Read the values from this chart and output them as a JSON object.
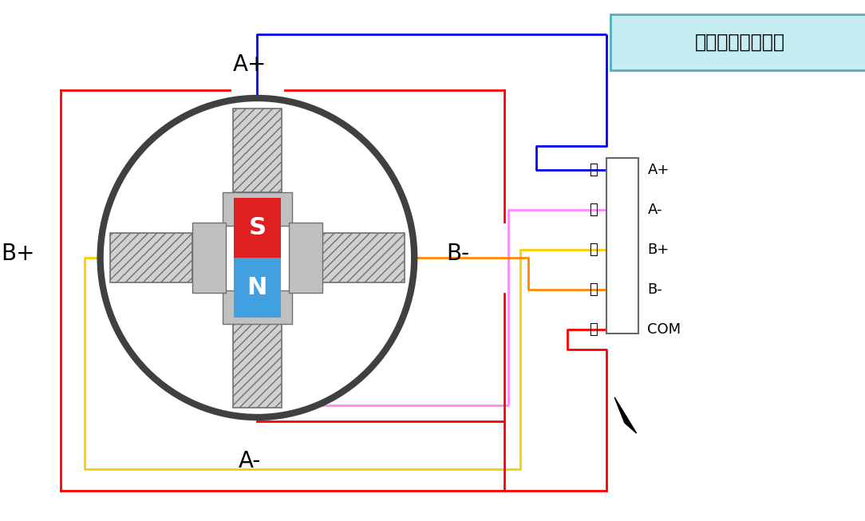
{
  "bg_color": "#ffffff",
  "title_text": "五线四相步进电机",
  "S_color": "#e02020",
  "N_color": "#40a0e0",
  "motor_circle_color": "#404040",
  "motor_circle_lw": 6,
  "wire_colors": {
    "blue": "#0000ee",
    "pink": "#ff88ff",
    "yellow": "#ffcc00",
    "orange": "#ff8800",
    "red": "#ff0000"
  },
  "connector_labels_cn": [
    "蓝",
    "粉",
    "黄",
    "橙",
    "红"
  ],
  "connector_labels_en": [
    "A+",
    "A-",
    "B+",
    "B-",
    "COM"
  ]
}
